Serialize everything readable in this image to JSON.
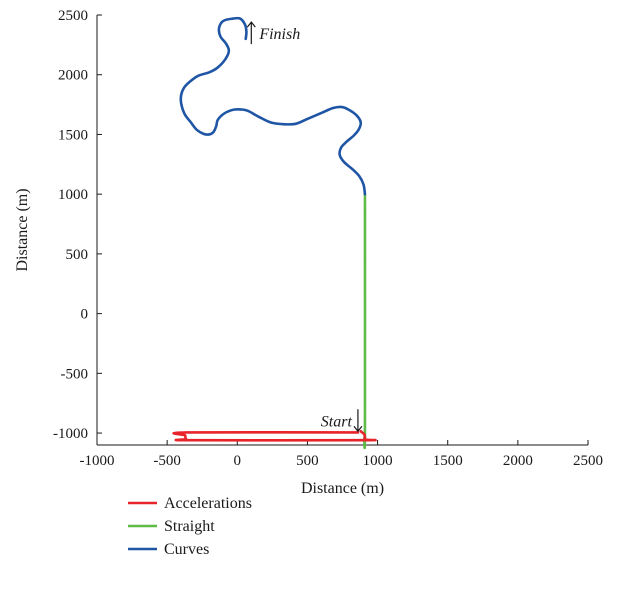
{
  "chart_data": {
    "type": "line",
    "title": "",
    "xlabel": "Distance (m)",
    "ylabel": "Distance (m)",
    "xlim": [
      -1000,
      2500
    ],
    "ylim": [
      -1100,
      2500
    ],
    "xticks": [
      -1000,
      -500,
      0,
      500,
      1000,
      1500,
      2000,
      2500
    ],
    "yticks": [
      -1000,
      -500,
      0,
      500,
      1000,
      1500,
      2000,
      2500
    ],
    "xtick_labels": [
      "-1000",
      "-500",
      "0",
      "500",
      "1000",
      "1500",
      "2000",
      "2500"
    ],
    "ytick_labels": [
      "-1000",
      "-500",
      "0",
      "500",
      "1000",
      "1500",
      "2000",
      "2500"
    ],
    "grid": false,
    "legend": "below",
    "annotations": [
      {
        "text": "Start",
        "x": 860,
        "y": -985,
        "arrow": "down"
      },
      {
        "text": "Finish",
        "x": 100,
        "y": 2340,
        "arrow": "up"
      }
    ],
    "series": [
      {
        "name": "Accelerations",
        "color": "#e8242b",
        "x": [
          860,
          -360,
          -370,
          -365,
          -340,
          890,
          905,
          910,
          905,
          890,
          880
        ],
        "y": [
          -995,
          -995,
          -1020,
          -1050,
          -1060,
          -1060,
          -1055,
          -1040,
          -1010,
          -995,
          -985
        ]
      },
      {
        "name": "Straight",
        "color": "#5dbb46",
        "x": [
          905,
          910,
          910
        ],
        "y": [
          -1040,
          -950,
          1000
        ]
      },
      {
        "name": "Curves",
        "color": "#1f55a5",
        "x": [
          910,
          900,
          870,
          820,
          760,
          730,
          740,
          780,
          830,
          865,
          880,
          850,
          790,
          740,
          680,
          600,
          500,
          420,
          340,
          240,
          150,
          70,
          0,
          -50,
          -100,
          -140,
          -150,
          -170,
          -200,
          -240,
          -290,
          -330,
          -375,
          -400,
          -400,
          -380,
          -340,
          -280,
          -200,
          -140,
          -85,
          -60,
          -80,
          -120,
          -130,
          -100,
          -30,
          20,
          55,
          65,
          60
        ],
        "y": [
          1000,
          1080,
          1150,
          1210,
          1270,
          1330,
          1390,
          1440,
          1490,
          1540,
          1600,
          1660,
          1710,
          1730,
          1720,
          1680,
          1630,
          1590,
          1585,
          1600,
          1650,
          1700,
          1710,
          1700,
          1670,
          1620,
          1570,
          1520,
          1500,
          1505,
          1540,
          1600,
          1670,
          1760,
          1830,
          1890,
          1940,
          1990,
          2020,
          2060,
          2130,
          2200,
          2260,
          2320,
          2390,
          2450,
          2470,
          2470,
          2420,
          2360,
          2300
        ]
      }
    ]
  }
}
